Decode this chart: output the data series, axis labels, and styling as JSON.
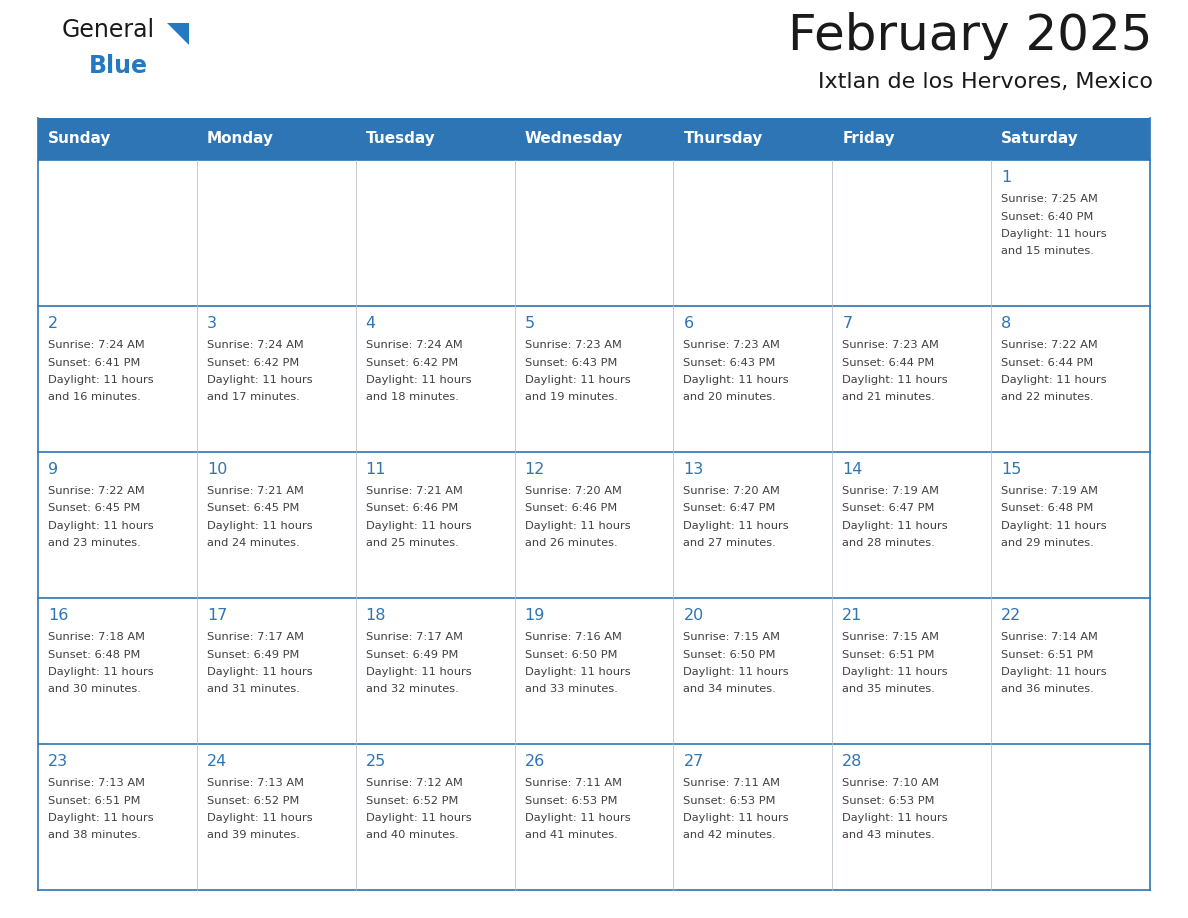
{
  "title": "February 2025",
  "subtitle": "Ixtlan de los Hervores, Mexico",
  "header_bg": "#2e75b6",
  "header_text_color": "#ffffff",
  "cell_bg": "#f2f2f2",
  "cell_bg_white": "#ffffff",
  "day_number_color": "#2e75b6",
  "info_text_color": "#404040",
  "line_color": "#2e75b6",
  "days_of_week": [
    "Sunday",
    "Monday",
    "Tuesday",
    "Wednesday",
    "Thursday",
    "Friday",
    "Saturday"
  ],
  "calendar_data": [
    [
      null,
      null,
      null,
      null,
      null,
      null,
      {
        "day": 1,
        "sunrise": "7:25 AM",
        "sunset": "6:40 PM",
        "daylight": "11 hours and 15 minutes."
      }
    ],
    [
      {
        "day": 2,
        "sunrise": "7:24 AM",
        "sunset": "6:41 PM",
        "daylight": "11 hours and 16 minutes."
      },
      {
        "day": 3,
        "sunrise": "7:24 AM",
        "sunset": "6:42 PM",
        "daylight": "11 hours and 17 minutes."
      },
      {
        "day": 4,
        "sunrise": "7:24 AM",
        "sunset": "6:42 PM",
        "daylight": "11 hours and 18 minutes."
      },
      {
        "day": 5,
        "sunrise": "7:23 AM",
        "sunset": "6:43 PM",
        "daylight": "11 hours and 19 minutes."
      },
      {
        "day": 6,
        "sunrise": "7:23 AM",
        "sunset": "6:43 PM",
        "daylight": "11 hours and 20 minutes."
      },
      {
        "day": 7,
        "sunrise": "7:23 AM",
        "sunset": "6:44 PM",
        "daylight": "11 hours and 21 minutes."
      },
      {
        "day": 8,
        "sunrise": "7:22 AM",
        "sunset": "6:44 PM",
        "daylight": "11 hours and 22 minutes."
      }
    ],
    [
      {
        "day": 9,
        "sunrise": "7:22 AM",
        "sunset": "6:45 PM",
        "daylight": "11 hours and 23 minutes."
      },
      {
        "day": 10,
        "sunrise": "7:21 AM",
        "sunset": "6:45 PM",
        "daylight": "11 hours and 24 minutes."
      },
      {
        "day": 11,
        "sunrise": "7:21 AM",
        "sunset": "6:46 PM",
        "daylight": "11 hours and 25 minutes."
      },
      {
        "day": 12,
        "sunrise": "7:20 AM",
        "sunset": "6:46 PM",
        "daylight": "11 hours and 26 minutes."
      },
      {
        "day": 13,
        "sunrise": "7:20 AM",
        "sunset": "6:47 PM",
        "daylight": "11 hours and 27 minutes."
      },
      {
        "day": 14,
        "sunrise": "7:19 AM",
        "sunset": "6:47 PM",
        "daylight": "11 hours and 28 minutes."
      },
      {
        "day": 15,
        "sunrise": "7:19 AM",
        "sunset": "6:48 PM",
        "daylight": "11 hours and 29 minutes."
      }
    ],
    [
      {
        "day": 16,
        "sunrise": "7:18 AM",
        "sunset": "6:48 PM",
        "daylight": "11 hours and 30 minutes."
      },
      {
        "day": 17,
        "sunrise": "7:17 AM",
        "sunset": "6:49 PM",
        "daylight": "11 hours and 31 minutes."
      },
      {
        "day": 18,
        "sunrise": "7:17 AM",
        "sunset": "6:49 PM",
        "daylight": "11 hours and 32 minutes."
      },
      {
        "day": 19,
        "sunrise": "7:16 AM",
        "sunset": "6:50 PM",
        "daylight": "11 hours and 33 minutes."
      },
      {
        "day": 20,
        "sunrise": "7:15 AM",
        "sunset": "6:50 PM",
        "daylight": "11 hours and 34 minutes."
      },
      {
        "day": 21,
        "sunrise": "7:15 AM",
        "sunset": "6:51 PM",
        "daylight": "11 hours and 35 minutes."
      },
      {
        "day": 22,
        "sunrise": "7:14 AM",
        "sunset": "6:51 PM",
        "daylight": "11 hours and 36 minutes."
      }
    ],
    [
      {
        "day": 23,
        "sunrise": "7:13 AM",
        "sunset": "6:51 PM",
        "daylight": "11 hours and 38 minutes."
      },
      {
        "day": 24,
        "sunrise": "7:13 AM",
        "sunset": "6:52 PM",
        "daylight": "11 hours and 39 minutes."
      },
      {
        "day": 25,
        "sunrise": "7:12 AM",
        "sunset": "6:52 PM",
        "daylight": "11 hours and 40 minutes."
      },
      {
        "day": 26,
        "sunrise": "7:11 AM",
        "sunset": "6:53 PM",
        "daylight": "11 hours and 41 minutes."
      },
      {
        "day": 27,
        "sunrise": "7:11 AM",
        "sunset": "6:53 PM",
        "daylight": "11 hours and 42 minutes."
      },
      {
        "day": 28,
        "sunrise": "7:10 AM",
        "sunset": "6:53 PM",
        "daylight": "11 hours and 43 minutes."
      },
      null
    ]
  ],
  "logo_general_color": "#1a1a1a",
  "logo_blue_color": "#2479c0",
  "logo_triangle_color": "#2479c0",
  "figwidth": 11.88,
  "figheight": 9.18,
  "dpi": 100
}
